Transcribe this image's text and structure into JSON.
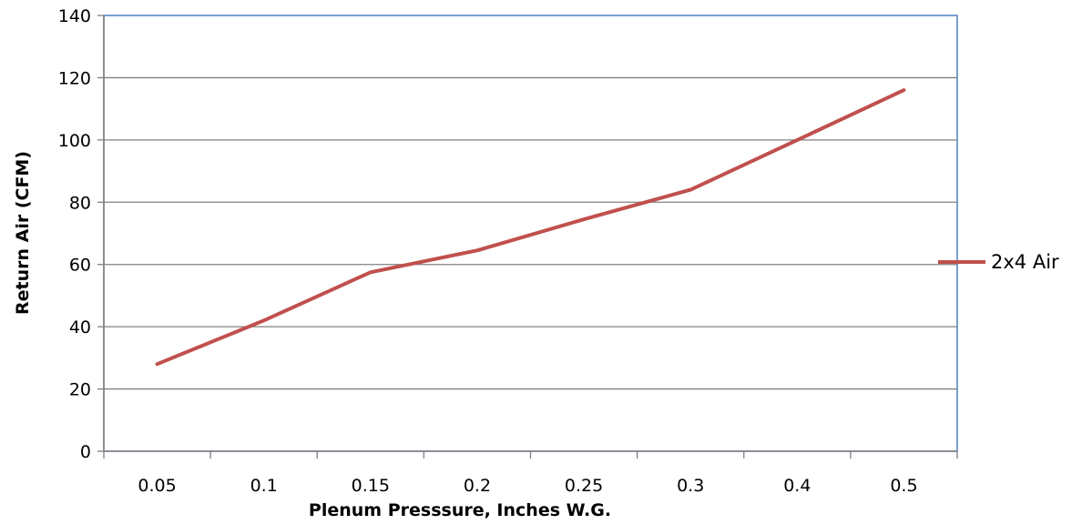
{
  "chart_data": {
    "type": "line",
    "title": "",
    "xlabel": "Plenum Presssure, Inches W.G.",
    "ylabel": "Return Air (CFM)",
    "categories": [
      "0.05",
      "0.1",
      "0.15",
      "0.2",
      "0.25",
      "0.3",
      "0.4",
      "0.5"
    ],
    "series": [
      {
        "name": "2x4 Air",
        "color": "#c0504d",
        "values": [
          28,
          42,
          57.5,
          64.5,
          74.5,
          84,
          100,
          116
        ]
      }
    ],
    "ylim": [
      0,
      140
    ],
    "yticks": [
      "0",
      "20",
      "40",
      "60",
      "80",
      "100",
      "120",
      "140"
    ],
    "grid": true,
    "legend_position": "right",
    "colors": {
      "plot_border": "#4f81bd",
      "gridline": "#808080",
      "axis": "#808080"
    }
  }
}
